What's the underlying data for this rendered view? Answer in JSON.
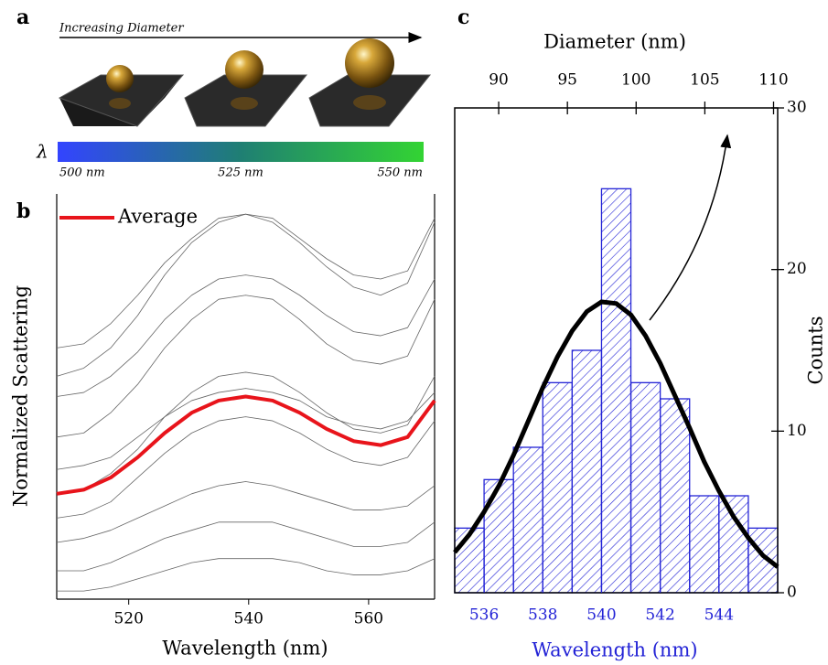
{
  "panel_labels": [
    "a",
    "b",
    "c"
  ],
  "illustration": {
    "arrow_label": "Increasing Diameter",
    "symbol": "λ",
    "scale_labels": [
      "500 nm",
      "525 nm",
      "550 nm"
    ]
  },
  "chart_data": [
    {
      "type": "line",
      "xlabel": "Wavelength (nm)",
      "ylabel": "Normalized Scattering",
      "x": [
        508,
        512.5,
        517,
        521.5,
        526,
        530.5,
        535,
        539.5,
        544,
        548.5,
        553,
        557.5,
        562,
        566.5,
        571
      ],
      "xlim": [
        508,
        571
      ],
      "xticks": [
        520,
        540,
        560
      ],
      "ylim": [
        0,
        1
      ],
      "legend": "upper left",
      "series": [
        {
          "color": "#666666",
          "values": [
            0.62,
            0.63,
            0.68,
            0.75,
            0.83,
            0.89,
            0.94,
            0.95,
            0.94,
            0.89,
            0.84,
            0.8,
            0.79,
            0.81,
            0.94
          ]
        },
        {
          "color": "#666666",
          "values": [
            0.55,
            0.57,
            0.62,
            0.7,
            0.8,
            0.88,
            0.93,
            0.95,
            0.93,
            0.88,
            0.82,
            0.77,
            0.75,
            0.78,
            0.93
          ]
        },
        {
          "color": "#666666",
          "values": [
            0.5,
            0.51,
            0.55,
            0.61,
            0.69,
            0.75,
            0.79,
            0.8,
            0.79,
            0.75,
            0.7,
            0.66,
            0.65,
            0.67,
            0.79
          ]
        },
        {
          "color": "#666666",
          "values": [
            0.4,
            0.41,
            0.46,
            0.53,
            0.62,
            0.69,
            0.74,
            0.75,
            0.74,
            0.69,
            0.63,
            0.59,
            0.58,
            0.6,
            0.74
          ]
        },
        {
          "color": "#666666",
          "values": [
            0.32,
            0.33,
            0.35,
            0.4,
            0.45,
            0.49,
            0.51,
            0.52,
            0.51,
            0.49,
            0.45,
            0.43,
            0.42,
            0.44,
            0.51
          ]
        },
        {
          "color": "#666666",
          "values": [
            0.26,
            0.27,
            0.31,
            0.37,
            0.45,
            0.51,
            0.55,
            0.56,
            0.55,
            0.51,
            0.46,
            0.42,
            0.41,
            0.43,
            0.55
          ]
        },
        {
          "color": "#666666",
          "values": [
            0.2,
            0.21,
            0.24,
            0.3,
            0.36,
            0.41,
            0.44,
            0.45,
            0.44,
            0.41,
            0.37,
            0.34,
            0.33,
            0.35,
            0.44
          ]
        },
        {
          "color": "#666666",
          "values": [
            0.14,
            0.15,
            0.17,
            0.2,
            0.23,
            0.26,
            0.28,
            0.29,
            0.28,
            0.26,
            0.24,
            0.22,
            0.22,
            0.23,
            0.28
          ]
        },
        {
          "color": "#666666",
          "values": [
            0.07,
            0.07,
            0.09,
            0.12,
            0.15,
            0.17,
            0.19,
            0.19,
            0.19,
            0.17,
            0.15,
            0.13,
            0.13,
            0.14,
            0.19
          ]
        },
        {
          "color": "#666666",
          "values": [
            0.02,
            0.02,
            0.03,
            0.05,
            0.07,
            0.09,
            0.1,
            0.1,
            0.1,
            0.09,
            0.07,
            0.06,
            0.06,
            0.07,
            0.1
          ]
        },
        {
          "name": "Average",
          "color": "#e8141b",
          "values": [
            0.26,
            0.27,
            0.3,
            0.35,
            0.41,
            0.46,
            0.49,
            0.5,
            0.49,
            0.46,
            0.42,
            0.39,
            0.38,
            0.4,
            0.49
          ]
        }
      ]
    },
    {
      "type": "histogram",
      "xlabel": "Wavelength (nm)",
      "x2label": "Diameter (nm)",
      "y2label": "Counts",
      "bins": [
        535,
        536,
        537,
        538,
        539,
        540,
        541,
        542,
        543,
        544,
        545,
        546
      ],
      "values": [
        4,
        7,
        9,
        13,
        15,
        25,
        13,
        12,
        6,
        6,
        4
      ],
      "color": "#2323d6",
      "xlim": [
        535,
        546
      ],
      "xticks": [
        536,
        538,
        540,
        542,
        544
      ],
      "x2lim": [
        86.8,
        110.3
      ],
      "x2ticks": [
        90,
        95,
        100,
        105,
        110
      ],
      "y2lim": [
        0,
        30
      ],
      "y2ticks": [
        0,
        10,
        20,
        30
      ],
      "fit": {
        "color": "#000000",
        "x": [
          535,
          535.5,
          536,
          536.5,
          537,
          537.5,
          538,
          538.5,
          539,
          539.5,
          540,
          540.5,
          541,
          541.5,
          542,
          542.5,
          543,
          543.5,
          544,
          544.5,
          545,
          545.5,
          546
        ],
        "values": [
          2.5,
          3.6,
          5.0,
          6.6,
          8.5,
          10.6,
          12.7,
          14.6,
          16.2,
          17.4,
          18.0,
          17.9,
          17.2,
          15.9,
          14.2,
          12.2,
          10.2,
          8.1,
          6.3,
          4.7,
          3.4,
          2.3,
          1.6
        ]
      }
    }
  ]
}
